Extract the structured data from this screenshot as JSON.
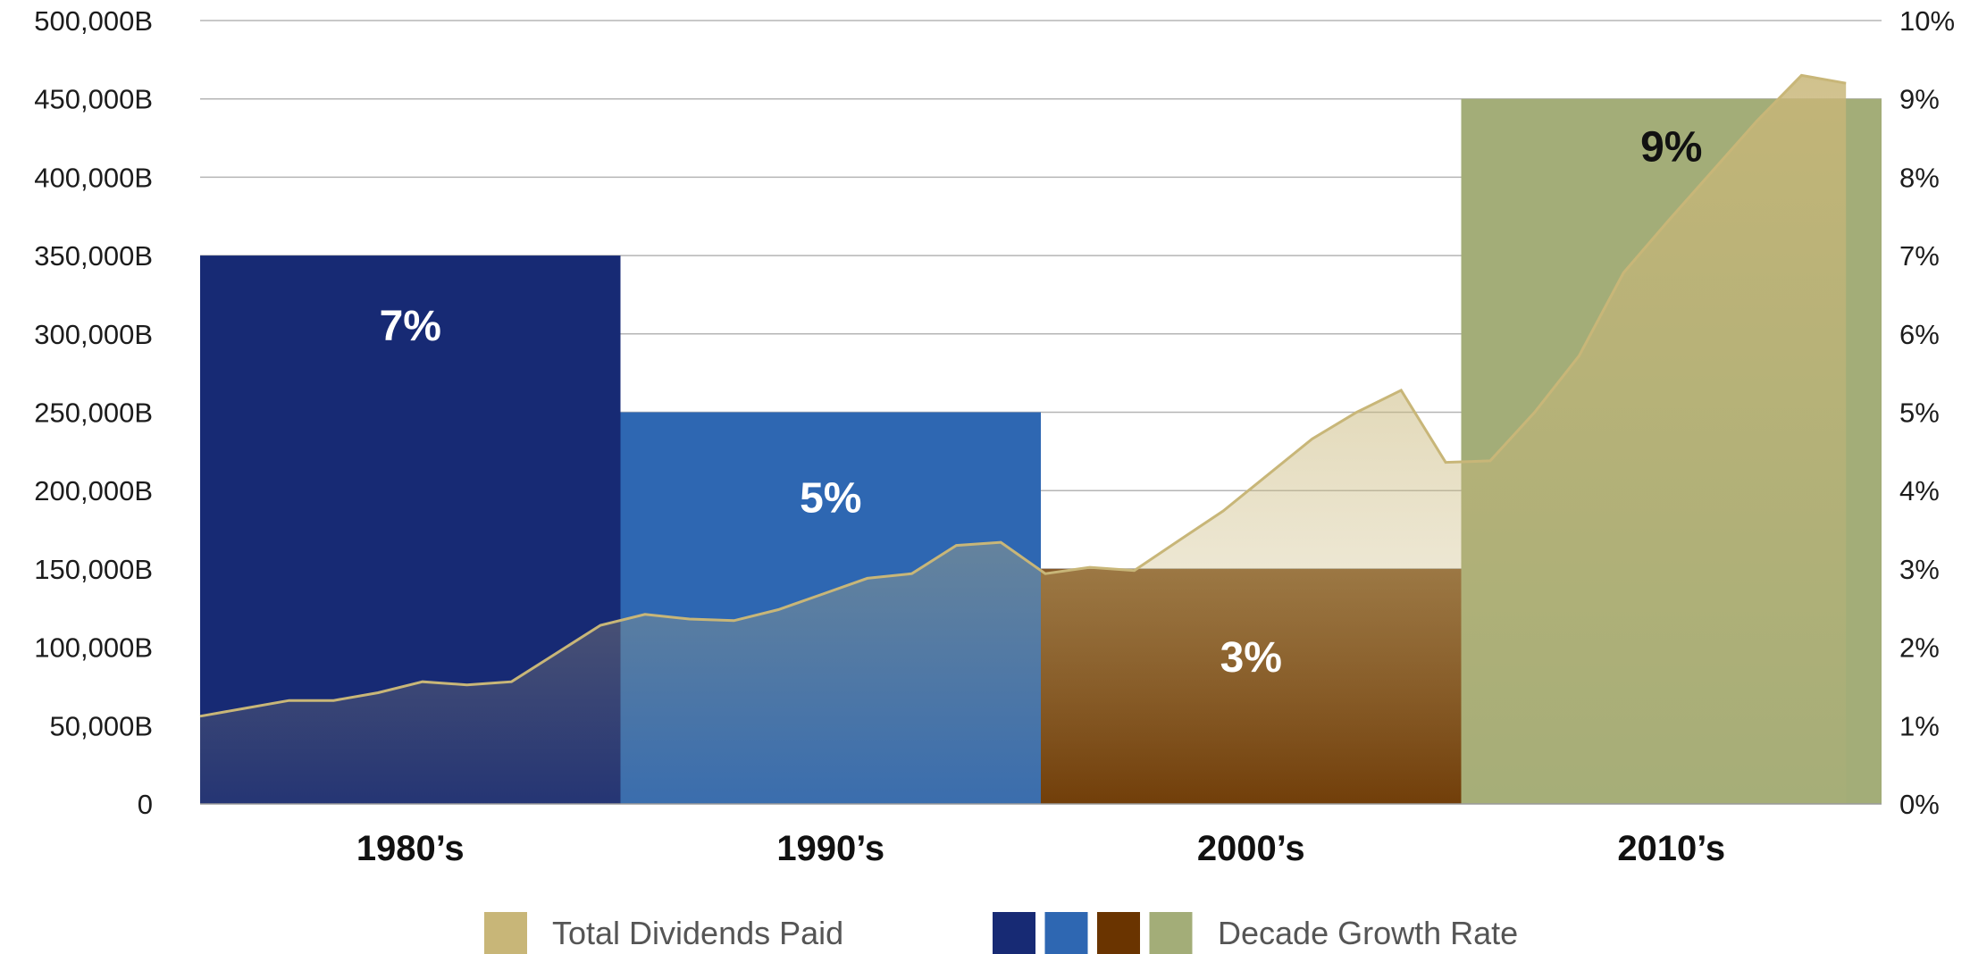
{
  "chart_data": {
    "type": "bar",
    "categories": [
      "1980’s",
      "1990’s",
      "2000’s",
      "2010’s"
    ],
    "series": [
      {
        "name": "Decade Growth Rate",
        "kind": "bar",
        "axis": "right",
        "values": [
          7,
          5,
          3,
          9
        ],
        "value_labels": [
          "7%",
          "5%",
          "3%",
          "9%"
        ],
        "colors": [
          "#172a74",
          "#2e67b2",
          "#6a3400",
          "#a3ad78"
        ],
        "label_colors": [
          "#ffffff",
          "#ffffff",
          "#ffffff",
          "#111111"
        ]
      },
      {
        "name": "Total Dividends Paid",
        "kind": "area",
        "axis": "left",
        "color": "#c8b678",
        "points": [
          [
            1980,
            56000
          ],
          [
            1981,
            61000
          ],
          [
            1982,
            66000
          ],
          [
            1983,
            66000
          ],
          [
            1984,
            71000
          ],
          [
            1985,
            78000
          ],
          [
            1986,
            76000
          ],
          [
            1987,
            78000
          ],
          [
            1988,
            96000
          ],
          [
            1989,
            114000
          ],
          [
            1990,
            121000
          ],
          [
            1991,
            118000
          ],
          [
            1992,
            117000
          ],
          [
            1993,
            124000
          ],
          [
            1994,
            134000
          ],
          [
            1995,
            144000
          ],
          [
            1996,
            147000
          ],
          [
            1997,
            165000
          ],
          [
            1998,
            167000
          ],
          [
            1999,
            147000
          ],
          [
            2000,
            151000
          ],
          [
            2001,
            149000
          ],
          [
            2002,
            168000
          ],
          [
            2003,
            187000
          ],
          [
            2004,
            210000
          ],
          [
            2005,
            233000
          ],
          [
            2006,
            250000
          ],
          [
            2007,
            264000
          ],
          [
            2008,
            218000
          ],
          [
            2009,
            219000
          ],
          [
            2010,
            250000
          ],
          [
            2011,
            286000
          ],
          [
            2012,
            339000
          ],
          [
            2013,
            372000
          ],
          [
            2014,
            404000
          ],
          [
            2015,
            436000
          ],
          [
            2016,
            465000
          ],
          [
            2017,
            460000
          ]
        ]
      }
    ],
    "y_left": {
      "ticks": [
        0,
        50000,
        100000,
        150000,
        200000,
        250000,
        300000,
        350000,
        400000,
        450000,
        500000
      ],
      "tick_labels": [
        "0",
        "50,000B",
        "100,000B",
        "150,000B",
        "200,000B",
        "250,000B",
        "300,000B",
        "350,000B",
        "400,000B",
        "450,000B",
        "500,000B"
      ],
      "ylim": [
        0,
        500000
      ]
    },
    "y_right": {
      "ticks": [
        0,
        1,
        2,
        3,
        4,
        5,
        6,
        7,
        8,
        9,
        10
      ],
      "tick_labels": [
        "0%",
        "1%",
        "2%",
        "3%",
        "4%",
        "5%",
        "6%",
        "7%",
        "8%",
        "9%",
        "10%"
      ],
      "ylim": [
        0,
        10
      ]
    },
    "x_range": [
      1980,
      2017.8
    ],
    "grid": true,
    "legend": {
      "position": "bottom",
      "entries": [
        {
          "label": "Total Dividends Paid",
          "swatches": [
            "#c8b678"
          ]
        },
        {
          "label": "Decade Growth Rate",
          "swatches": [
            "#172a74",
            "#2e67b2",
            "#6a3400",
            "#a3ad78"
          ]
        }
      ]
    }
  }
}
